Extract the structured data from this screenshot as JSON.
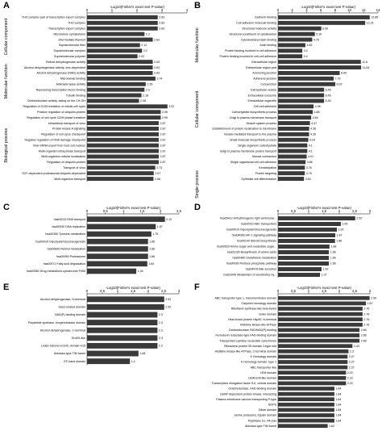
{
  "panels": [
    {
      "letter": "A"
    },
    {
      "letter": "B"
    },
    {
      "letter": "C"
    },
    {
      "letter": "D"
    },
    {
      "letter": "E"
    },
    {
      "letter": "F"
    }
  ],
  "chart_data": [
    {
      "type": "bar",
      "orientation": "horizontal",
      "xlabel": "-Log10(Fisher's exact test P-value)",
      "xlim": [
        0,
        4
      ],
      "xticks": [
        0,
        1,
        2,
        3,
        4
      ],
      "groups": [
        {
          "name": "Cellular component",
          "start": 0,
          "end": 7
        },
        {
          "name": "Molecular function",
          "start": 8,
          "end": 15
        },
        {
          "name": "Biological process",
          "start": 16,
          "end": 30
        }
      ],
      "categories": [
        "THO complex part of transcription export complex",
        "THO complex",
        "Transcription export complex",
        "Microtubule cytoskeleton",
        "Intermediate filament",
        "Supramolecular fiber",
        "Supramolecular complex",
        "Supramolecular polymer",
        "Retinol dehydrogenase activity",
        "Alcohol dehydrogenase activity, zinc-dependent",
        "Alcohol dehydrogenase (NAD) activity",
        "Microtubule binding",
        "Aldehyde-lyase activity",
        "Repressing transcription factor binding",
        "Tubulin binding",
        "Oxidoreductase activity, acting on the CH-OH",
        "Regulation of G2/M transition of mitotic cell cycle",
        "Positive regulation of ubiquitin-protein",
        "Regulation of cell cycle G2/M phase transition",
        "Intracellular transport of virus",
        "Protein kinase A signaling",
        "Regulation of cell cycle checkpoint",
        "Negative regulation of DNA damage checkpoint",
        "Viral mRNA export from host cell nucleus",
        "Multi-organism intracellular transport",
        "Multi-organism cellular localization",
        "Regulation of ubiquitin-protein",
        "Transport of virus",
        "SCF-dependent proteasomal ubiquitin-dependent",
        "Multi-organism transport"
      ],
      "values": [
        2.83,
        2.83,
        2.83,
        2.3,
        2.63,
        2.12,
        2.2,
        2.02,
        2.63,
        2.63,
        2.63,
        2.74,
        2.35,
        2.3,
        2.18,
        2.08,
        3.22,
        2.95,
        2.95,
        2.87,
        2.87,
        2.87,
        2.87,
        2.87,
        2.87,
        2.87,
        2.87,
        2.73,
        2.67,
        2.66
      ],
      "value_labels": [
        "2.83",
        "2.83",
        "2.83",
        "2.3",
        "2.63",
        "2.12",
        "2.2",
        "2.02",
        "2.63",
        "2.63",
        "2.63",
        "2.74",
        "2.35",
        "2.3",
        "2.18",
        "2.08",
        "3.22",
        "2.95",
        "2.95",
        "2.87",
        "2.87",
        "2.87",
        "2.87",
        "2.87",
        "2.87",
        "2.87",
        "2.87",
        "2.73",
        "2.67",
        "2.66"
      ]
    },
    {
      "type": "bar",
      "orientation": "horizontal",
      "xlabel": "-Log10(Fisher's exact test P-value)",
      "xlim": [
        0,
        14
      ],
      "xticks": [
        0,
        2,
        4,
        6,
        8,
        10,
        12,
        14
      ],
      "groups": [
        {
          "name": "Molecular function",
          "start": 0,
          "end": 10
        },
        {
          "name": "Cellular component",
          "start": 11,
          "end": 22
        },
        {
          "name": "Single process",
          "start": 23,
          "end": 37
        }
      ],
      "categories": [
        "Cadherin binding",
        "Cell adhesion molecule binding",
        "Structural molecule activity",
        "Structural constituent of cytoskeleton",
        "Cytoskeletal protein binding",
        "Actin binding",
        "Protein binding involved in cell adhesion",
        "Protein binding involved in cell-cell adhesion",
        "Extracellular region",
        "Extracellular region part",
        "Anchoring junction",
        "Adherens junction",
        "Cell junction",
        "Extracellular vesicle",
        "Extracellular exosome",
        "Extracellular organelle",
        "Cell-cell adhesion",
        "Carbohydrate biosynthetic process",
        "Golgi to plasma membrane transport",
        "Muscle system process",
        "Establishment of protein localization to membrane",
        "Vesicle-mediated transport to the plasma",
        "Small molecule biosynthetic process",
        "Single organism carbohydrate",
        "Golgi to plasma membrane protein transport",
        "Muscle contraction",
        "Single organismal cell-cell adhesion",
        "Keratinization",
        "Protein targeting",
        "Epithelial cell differentiation"
      ],
      "values": [
        12.85,
        12.21,
        6.06,
        5.16,
        4.79,
        3.83,
        3.4,
        3.4,
        11.6,
        11.64,
        8.64,
        7.79,
        8.02,
        6.45,
        6.45,
        6.45,
        4.98,
        4.86,
        4.64,
        4.47,
        4.36,
        4.35,
        4.24,
        4.1,
        4.1,
        4.01,
        3.86,
        3.76,
        3.75,
        3.63
      ],
      "value_labels": [
        "12.85",
        "12.21",
        "6.06",
        "5.16",
        "4.79",
        "3.83",
        "3.4",
        "3.4",
        "11.6",
        "11.64",
        "8.64",
        "7.79",
        "8.02",
        "6.45",
        "6.45",
        "6.45",
        "4.98",
        "4.86",
        "4.64",
        "4.47",
        "4.36",
        "4.35",
        "4.24",
        "4.1",
        "4.1",
        "4.01",
        "3.86",
        "3.76",
        "3.75",
        "3.63"
      ]
    },
    {
      "type": "bar",
      "orientation": "horizontal",
      "xlabel": "-Log10(Fisher's exact test P-value)",
      "xlim": [
        0,
        2.5
      ],
      "xticks": [
        0,
        0.5,
        1,
        1.5,
        2,
        2.5
      ],
      "categories": [
        "hsa03013 RNA transport",
        "hsa00030 DNA replication",
        "hsa00350 Tyrosine metabolism",
        "hsa00010 Glycolysis/Gluconeogenesis",
        "hsa00830 Retinol metabolism",
        "hsa00050 Proteasome",
        "hsa00071 Fatty acid degradation",
        "hsa00982 Drug metabolism-cytochrome P450"
      ],
      "values": [
        2.12,
        1.87,
        1.75,
        1.66,
        1.66,
        1.66,
        1.64,
        1.34
      ],
      "value_labels": [
        "2.12",
        "1.87",
        "1.75",
        "1.66",
        "1.66",
        "1.66",
        "1.64",
        "1.34"
      ]
    },
    {
      "type": "bar",
      "orientation": "horizontal",
      "xlabel": "-Log10(Fisher's exact test P-value)",
      "xlim": [
        0,
        3
      ],
      "xticks": [
        0,
        0.5,
        1,
        1.5,
        2,
        2.5,
        3
      ],
      "categories": [
        "hsa05412 Arrhythmogenic right ventricular...",
        "hsa02010 ABC transporters",
        "hsa00010 Glycolysis/Gluconeogenesis",
        "hsa04066 HIF-1 signaling pathway",
        "hsa00140 Steroid biosynthesis",
        "hsa00520 Amino sugar and nucleotide sugar...",
        "hsa01230 Biosynthesis of amino acids",
        "hsa00480 Glutathione metabolism",
        "hsa00030 Pentose phosphate pathway",
        "hsa04976 Bile secretion",
        "hsa01040 Metabolism of xenobiotics by..."
      ],
      "values": [
        2.52,
        2.05,
        1.92,
        1.87,
        1.86,
        1.68,
        1.66,
        1.66,
        1.66,
        1.42,
        1.37
      ],
      "value_labels": [
        "2.52",
        "2.05",
        "1.92",
        "1.87",
        "1.86",
        "1.68",
        "1.66",
        "1.66",
        "1.66",
        "1.42",
        "1.37"
      ]
    },
    {
      "type": "bar",
      "orientation": "horizontal",
      "xlabel": "-Log10(Fisher's exact test P-value)",
      "xlim": [
        0,
        3
      ],
      "xticks": [
        0,
        0.5,
        1,
        1.5,
        2,
        2.5,
        3
      ],
      "categories": [
        "Alcohol dehydrogenase, N-terminal",
        "Gas2-related domain",
        "NAD(P)-binding domain",
        "Polyketide synthase, enoylreductase domain",
        "Alcohol dehydrogenase, C-terminal",
        "GroES-like",
        "Linker histone H1/H5, domain H15",
        "Aldolase-type TIM barrel",
        "EF-hand domain"
      ],
      "values": [
        2.52,
        2.52,
        2.3,
        2.3,
        2.3,
        2.3,
        2.3,
        1.68,
        1.4
      ],
      "value_labels": [
        "2.52",
        "2.52",
        "2.3",
        "2.3",
        "2.3",
        "2.3",
        "2.3",
        "1.68",
        "1.4"
      ]
    },
    {
      "type": "bar",
      "orientation": "horizontal",
      "xlabel": "-Log10(Fisher's exact test P-value)",
      "xlim": [
        0,
        3
      ],
      "xticks": [
        0,
        0.5,
        1,
        1.5,
        2,
        2.5,
        3
      ],
      "categories": [
        "ABC transporter type 1, transmembrane domain",
        "Calponin homology domain",
        "Riboflavin synthase-like beta-barrel",
        "SoHo domain",
        "Heat shock protein Hsp90, N-terminal",
        "Histidine kinase-like ATPase",
        "Oxidoreductase FAD/NAD(P)-binding",
        "Ferredoxin reductase-type FAD-binding domain",
        "Flavoprotein pyridine nucleotide cytochrome",
        "Ribosomal protein S5 domain 2-type fold",
        "Histidine kinase-like ATPase, C-terminal domain",
        "K Homology domain",
        "K Homology domain, type 1",
        "ABC transporter-like",
        "LEM domain",
        "LEM/LEM-like domain",
        "Transcription elongation factor S-II, central domain",
        "Oxidoreductase, FAD-binding domain",
        "cGMP-dependent protein kinase, interacting",
        "Plasma membrane calcium transporting P-type",
        "NOPS",
        "Dilute domain",
        "Serine proteases, trypsin domain",
        "Peptidase S1, PA clan",
        "Aldolase-type TIM barrel"
      ],
      "values": [
        2.99,
        2.87,
        2.76,
        2.76,
        2.76,
        2.76,
        2.66,
        2.66,
        2.66,
        2.43,
        2.3,
        2.27,
        2.27,
        2.27,
        2.22,
        2.22,
        2.22,
        1.84,
        1.84,
        1.84,
        1.84,
        1.84,
        1.84,
        1.84,
        1.62
      ],
      "value_labels": [
        "2.99",
        "2.87",
        "2.76",
        "2.76",
        "2.76",
        "2.76",
        "2.66",
        "2.66",
        "2.66",
        "2.43",
        "2.3",
        "2.27",
        "2.27",
        "2.27",
        "2.22",
        "2.22",
        "2.22",
        "1.84",
        "1.84",
        "1.84",
        "1.84",
        "1.84",
        "1.84",
        "1.84",
        "1.62"
      ]
    }
  ]
}
